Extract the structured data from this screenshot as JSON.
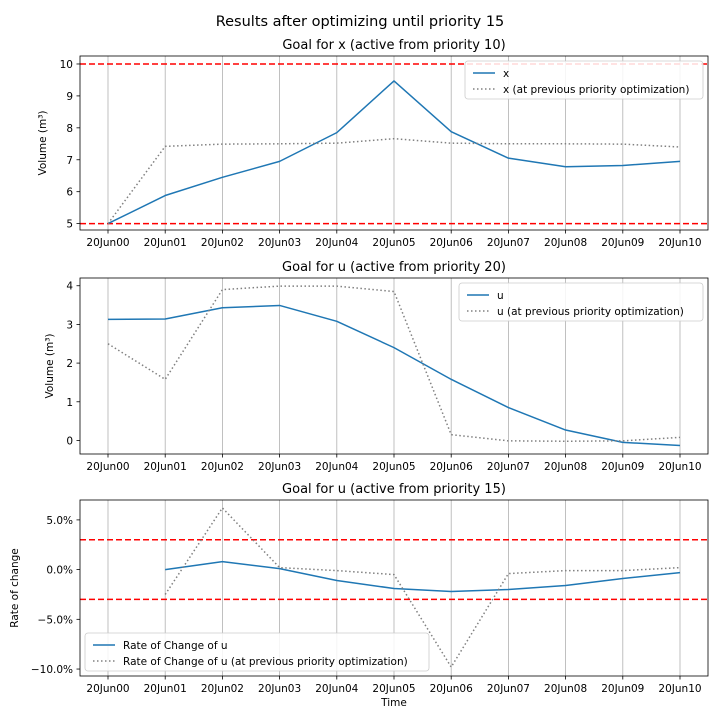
{
  "figure": {
    "suptitle": "Results after optimizing until priority 15"
  },
  "chart_data": [
    {
      "type": "line",
      "title": "Goal for x (active from priority 10)",
      "xlabel": "",
      "ylabel": "Volume (m³)",
      "categories": [
        "20Jun00",
        "20Jun01",
        "20Jun02",
        "20Jun03",
        "20Jun04",
        "20Jun05",
        "20Jun06",
        "20Jun07",
        "20Jun08",
        "20Jun09",
        "20Jun10"
      ],
      "ylim": [
        4.8,
        10.25
      ],
      "yticks": [
        5,
        6,
        7,
        8,
        9,
        10
      ],
      "ytick_labels": [
        "5",
        "6",
        "7",
        "8",
        "9",
        "10"
      ],
      "grid": "vertical",
      "legend": "top-right",
      "series": [
        {
          "name": "x",
          "style": "solid",
          "color": "#1f77b4",
          "values": [
            5.0,
            5.88,
            6.45,
            6.95,
            7.85,
            9.47,
            7.88,
            7.05,
            6.78,
            6.82,
            6.95
          ]
        },
        {
          "name": "x (at previous priority optimization)",
          "style": "dotted",
          "color": "#808080",
          "values": [
            5.0,
            7.42,
            7.49,
            7.5,
            7.52,
            7.66,
            7.52,
            7.5,
            7.5,
            7.49,
            7.4
          ]
        }
      ],
      "hlines": [
        {
          "y": 10,
          "color": "#ff0000",
          "style": "dashed"
        },
        {
          "y": 5,
          "color": "#ff0000",
          "style": "dashed"
        }
      ]
    },
    {
      "type": "line",
      "title": "Goal for u (active from priority 20)",
      "xlabel": "",
      "ylabel": "Volume (m³)",
      "categories": [
        "20Jun00",
        "20Jun01",
        "20Jun02",
        "20Jun03",
        "20Jun04",
        "20Jun05",
        "20Jun06",
        "20Jun07",
        "20Jun08",
        "20Jun09",
        "20Jun10"
      ],
      "ylim": [
        -0.35,
        4.2
      ],
      "yticks": [
        0,
        1,
        2,
        3,
        4
      ],
      "ytick_labels": [
        "0",
        "1",
        "2",
        "3",
        "4"
      ],
      "grid": "vertical",
      "legend": "top-right",
      "series": [
        {
          "name": "u",
          "style": "solid",
          "color": "#1f77b4",
          "values": [
            3.13,
            3.14,
            3.43,
            3.49,
            3.08,
            2.4,
            1.58,
            0.85,
            0.27,
            -0.05,
            -0.13
          ]
        },
        {
          "name": "u (at previous priority optimization)",
          "style": "dotted",
          "color": "#808080",
          "values": [
            2.5,
            1.58,
            3.9,
            3.99,
            3.99,
            3.85,
            0.15,
            -0.01,
            -0.02,
            -0.01,
            0.08
          ]
        }
      ],
      "hlines": []
    },
    {
      "type": "line",
      "title": "Goal for u (active from priority 15)",
      "xlabel": "Time",
      "ylabel": "Rate of change",
      "categories": [
        "20Jun00",
        "20Jun01",
        "20Jun02",
        "20Jun03",
        "20Jun04",
        "20Jun05",
        "20Jun06",
        "20Jun07",
        "20Jun08",
        "20Jun09",
        "20Jun10"
      ],
      "ylim": [
        -10.7,
        7.0
      ],
      "yticks": [
        5,
        0,
        -5,
        -10
      ],
      "ytick_labels": [
        "5.0%",
        "0.0%",
        "−5.0%",
        "−10.0%"
      ],
      "grid": "vertical",
      "legend": "bottom-left",
      "series": [
        {
          "name": "Rate of Change of u",
          "style": "solid",
          "color": "#1f77b4",
          "values": [
            null,
            0.0,
            0.8,
            0.1,
            -1.1,
            -1.9,
            -2.2,
            -2.0,
            -1.6,
            -0.9,
            -0.3
          ]
        },
        {
          "name": "Rate of Change of u (at previous priority optimization)",
          "style": "dotted",
          "color": "#808080",
          "values": [
            null,
            -2.5,
            6.2,
            0.2,
            -0.1,
            -0.5,
            -9.8,
            -0.4,
            -0.1,
            -0.1,
            0.2
          ]
        }
      ],
      "hlines": [
        {
          "y": 3,
          "color": "#ff0000",
          "style": "dashed"
        },
        {
          "y": -3,
          "color": "#ff0000",
          "style": "dashed"
        }
      ]
    }
  ]
}
